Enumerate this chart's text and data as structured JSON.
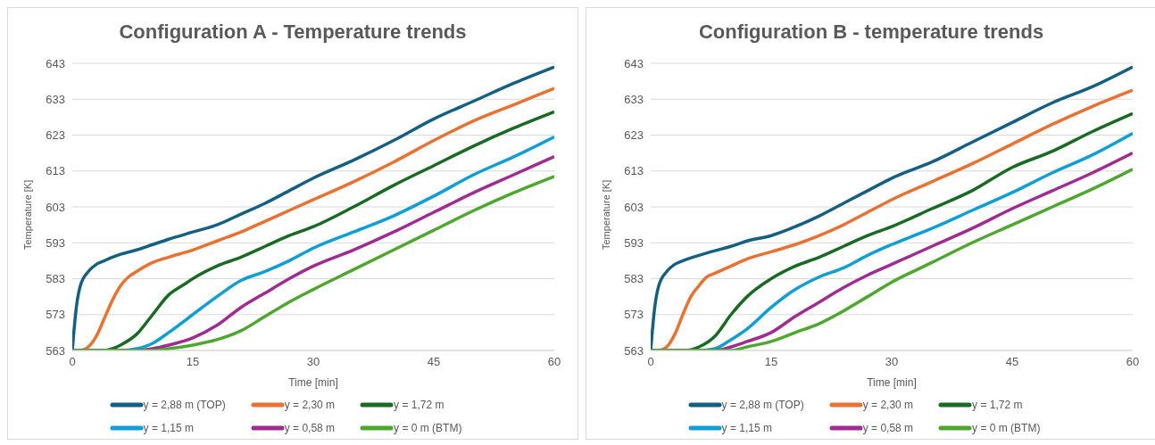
{
  "chart_data": [
    {
      "type": "line",
      "title": "Configuration  A - Temperature trends",
      "xlabel": "Time [min]",
      "ylabel": "Temperature [K]",
      "xlim": [
        0,
        60
      ],
      "xticks": [
        0,
        15,
        30,
        45,
        60
      ],
      "ylim": [
        563,
        643
      ],
      "yticks": [
        563,
        573,
        583,
        593,
        603,
        613,
        623,
        633,
        643
      ],
      "grid": "y",
      "legend": "bottom",
      "marker": "none",
      "line_style": "solid",
      "series": [
        {
          "name": "y = 2,88 m (TOP)",
          "color": "#156082",
          "x": [
            0,
            0.5,
            1,
            2,
            3,
            4,
            5,
            6,
            8,
            10,
            12,
            15,
            18,
            21,
            24,
            27,
            30,
            35,
            40,
            45,
            50,
            55,
            60
          ],
          "values": [
            563,
            575,
            581,
            585,
            587,
            588,
            589,
            589.8,
            591,
            592.5,
            594,
            596,
            598,
            601,
            604,
            607.5,
            611,
            616,
            621.5,
            627.5,
            632.5,
            637.5,
            642
          ]
        },
        {
          "name": "y = 2,30  m",
          "color": "#e97132",
          "x": [
            0,
            1,
            2,
            3,
            4,
            5,
            6,
            7,
            8,
            10,
            12,
            15,
            18,
            21,
            24,
            27,
            30,
            35,
            40,
            45,
            50,
            55,
            60
          ],
          "values": [
            563,
            563,
            564,
            567,
            572,
            577,
            581,
            583.5,
            585,
            587.5,
            589,
            591,
            593.5,
            596,
            599,
            602,
            605,
            610,
            615.5,
            621.5,
            627,
            631.5,
            636
          ]
        },
        {
          "name": "y = 1,72  m",
          "color": "#196b24",
          "x": [
            0,
            4,
            5,
            6,
            8,
            10,
            12,
            14,
            15,
            18,
            21,
            24,
            27,
            30,
            35,
            40,
            45,
            50,
            55,
            60
          ],
          "values": [
            563,
            563,
            563.5,
            564.5,
            567.5,
            573,
            578.5,
            581.5,
            583,
            586.5,
            589,
            592,
            595,
            597.5,
            603,
            609,
            614.5,
            620,
            625,
            629.5
          ]
        },
        {
          "name": "y = 1,15  m",
          "color": "#0f9ed5",
          "x": [
            0,
            6,
            8,
            10,
            12,
            15,
            18,
            21,
            24,
            27,
            30,
            35,
            40,
            45,
            50,
            55,
            60
          ],
          "values": [
            563,
            563,
            563.5,
            565,
            568,
            573,
            578,
            582.5,
            585,
            588,
            591.5,
            596,
            600.5,
            606,
            612,
            617,
            622.5
          ]
        },
        {
          "name": "y = 0,58  m",
          "color": "#a02b93",
          "x": [
            0,
            8,
            10,
            12,
            15,
            18,
            21,
            24,
            27,
            30,
            35,
            40,
            45,
            50,
            55,
            60
          ],
          "values": [
            563,
            563,
            563.5,
            564.5,
            566.5,
            570,
            575,
            579,
            583,
            586.5,
            591,
            596,
            601.5,
            607,
            612,
            617
          ]
        },
        {
          "name": "y = 0 m (BTM)",
          "color": "#4ea72e",
          "x": [
            0,
            10,
            12,
            15,
            18,
            21,
            24,
            27,
            30,
            35,
            40,
            45,
            50,
            55,
            60
          ],
          "values": [
            563,
            563,
            563.5,
            564.5,
            566,
            568.5,
            572.5,
            576.5,
            580,
            585.5,
            591,
            596.5,
            602,
            607,
            611.5
          ]
        }
      ]
    },
    {
      "type": "line",
      "title": "Configuration  B - temperature trends",
      "xlabel": "Time [min]",
      "ylabel": "Temperature [K]",
      "xlim": [
        0,
        60
      ],
      "xticks": [
        0,
        15,
        30,
        45,
        60
      ],
      "ylim": [
        563,
        643
      ],
      "yticks": [
        563,
        573,
        583,
        593,
        603,
        613,
        623,
        633,
        643
      ],
      "grid": "y",
      "legend": "bottom",
      "marker": "none",
      "line_style": "solid",
      "series": [
        {
          "name": "y = 2,88 m (TOP)",
          "color": "#156082",
          "x": [
            0,
            0.5,
            1,
            2,
            3,
            4,
            6,
            8,
            10,
            12,
            15,
            18,
            21,
            24,
            27,
            30,
            35,
            40,
            45,
            50,
            55,
            60
          ],
          "values": [
            563,
            575,
            581,
            585,
            587,
            588,
            589.5,
            590.8,
            592,
            593.5,
            595,
            597.5,
            600.5,
            604,
            607.5,
            611,
            615.5,
            621,
            626.5,
            632,
            636.5,
            642
          ]
        },
        {
          "name": "y = 2,30  m",
          "color": "#e97132",
          "x": [
            0,
            1,
            2,
            3,
            4,
            5,
            6,
            7,
            8,
            10,
            12,
            15,
            18,
            21,
            24,
            27,
            30,
            35,
            40,
            45,
            50,
            55,
            60
          ],
          "values": [
            563,
            563,
            564,
            567.5,
            573,
            578,
            581,
            583.5,
            584.5,
            586.5,
            588.5,
            590.5,
            592.5,
            595,
            598,
            601.5,
            605,
            610,
            615,
            620.5,
            626,
            631,
            635.5
          ]
        },
        {
          "name": "y = 1,72  m",
          "color": "#196b24",
          "x": [
            0,
            4,
            6,
            8,
            10,
            12,
            15,
            18,
            21,
            24,
            27,
            30,
            35,
            40,
            45,
            50,
            55,
            60
          ],
          "values": [
            563,
            563,
            564,
            567,
            573,
            578,
            583,
            586.5,
            589,
            592,
            595,
            597.5,
            602.5,
            607.5,
            614,
            618.5,
            624,
            629
          ]
        },
        {
          "name": "y = 1,15  m",
          "color": "#0f9ed5",
          "x": [
            0,
            6,
            8,
            10,
            12,
            15,
            18,
            21,
            24,
            27,
            30,
            35,
            40,
            45,
            50,
            55,
            60
          ],
          "values": [
            563,
            563,
            563.5,
            566,
            569,
            575,
            580,
            583.5,
            586,
            589.5,
            592.5,
            597,
            602,
            607,
            612.5,
            617.5,
            623.5
          ]
        },
        {
          "name": "y = 0,58  m",
          "color": "#a02b93",
          "x": [
            0,
            8,
            10,
            12,
            15,
            18,
            21,
            24,
            27,
            30,
            35,
            40,
            45,
            50,
            55,
            60
          ],
          "values": [
            563,
            563,
            564,
            565.5,
            568,
            572.5,
            576.5,
            580.5,
            584,
            587,
            592,
            597,
            602.5,
            607.5,
            612.5,
            618
          ]
        },
        {
          "name": "y = 0 m (BTM)",
          "color": "#4ea72e",
          "x": [
            0,
            10,
            12,
            15,
            18,
            21,
            24,
            27,
            30,
            35,
            40,
            45,
            50,
            55,
            60
          ],
          "values": [
            563,
            563,
            564,
            565.5,
            568,
            570.5,
            574,
            578,
            582,
            587.5,
            593,
            598,
            603,
            608,
            613.5
          ]
        }
      ]
    }
  ]
}
